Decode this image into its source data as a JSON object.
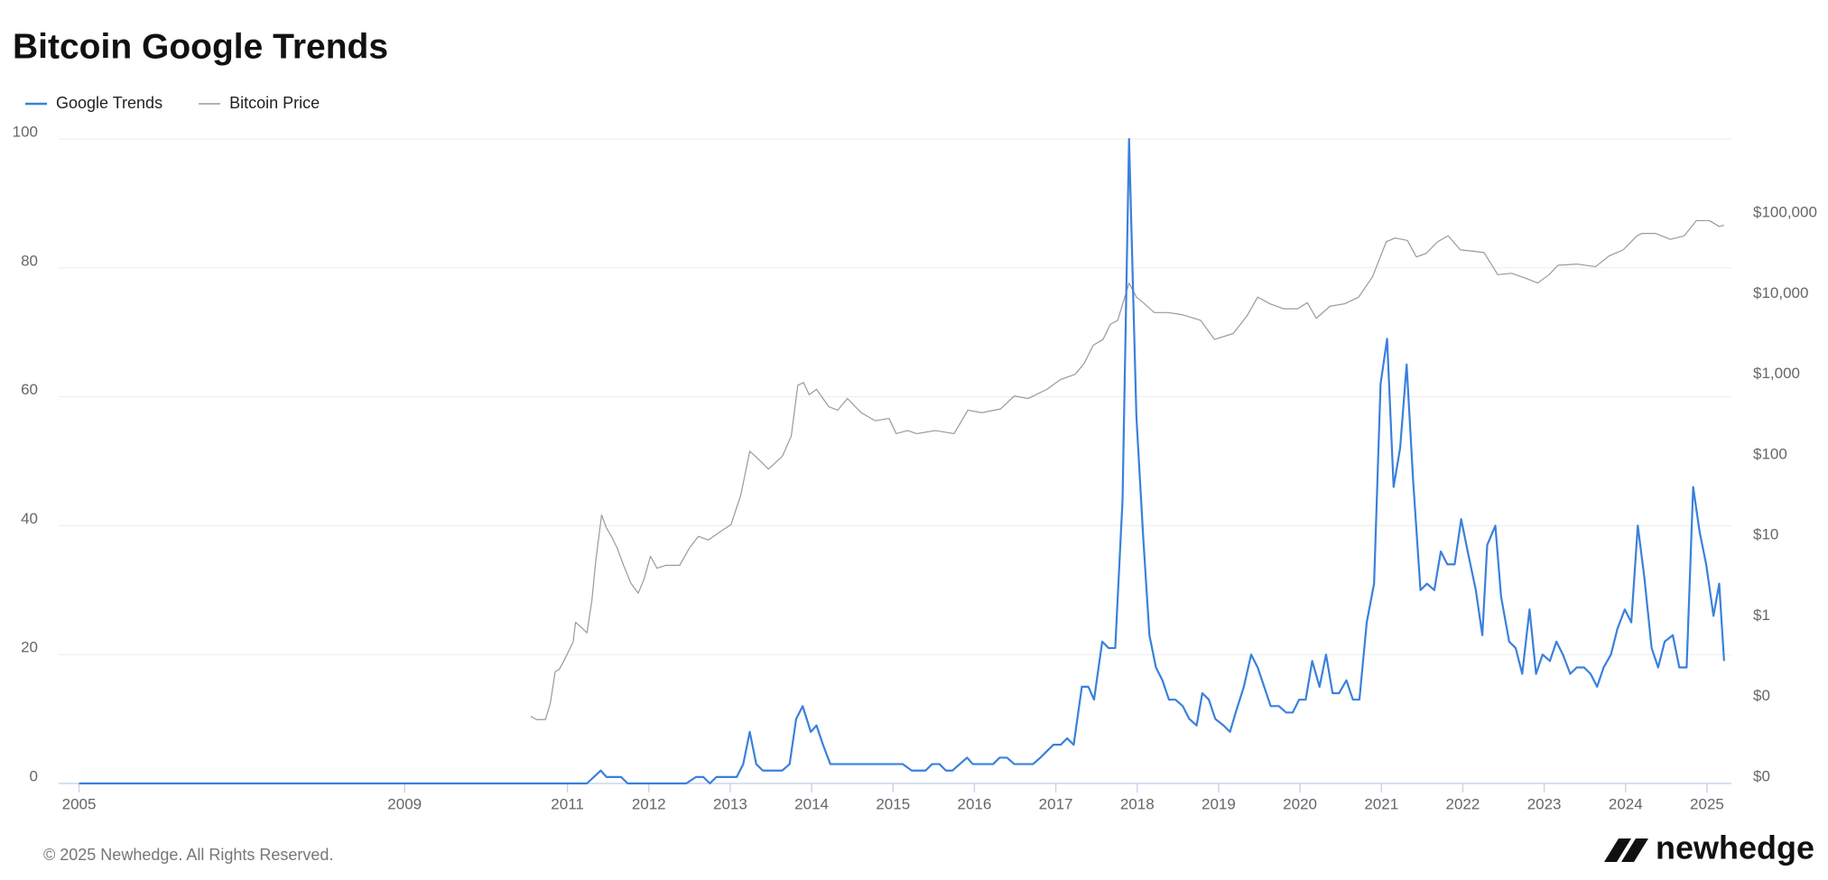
{
  "chart_data": {
    "type": "line",
    "title": "Bitcoin Google Trends",
    "xlim": [
      2004.75,
      2025.3
    ],
    "xticks": [
      2005,
      2009,
      2011,
      2012,
      2013,
      2014,
      2015,
      2016,
      2017,
      2018,
      2019,
      2020,
      2021,
      2022,
      2023,
      2024,
      2025
    ],
    "ylim": [
      0,
      100
    ],
    "yticks": [
      0,
      20,
      40,
      60,
      80,
      100
    ],
    "y2lim": [
      0.01,
      1000000
    ],
    "y2log": true,
    "y2ticks": [
      {
        "value": 0.01,
        "label": "$0"
      },
      {
        "value": 0.1,
        "label": "$0"
      },
      {
        "value": 1,
        "label": "$1"
      },
      {
        "value": 10,
        "label": "$10"
      },
      {
        "value": 100,
        "label": "$100"
      },
      {
        "value": 1000,
        "label": "$1,000"
      },
      {
        "value": 10000,
        "label": "$10,000"
      },
      {
        "value": 100000,
        "label": "$100,000"
      }
    ],
    "grid": true,
    "legend": "top-left",
    "series": [
      {
        "name": "Google Trends",
        "color": "#3a80dc",
        "axis": "y",
        "x": [
          2005.0,
          2011.24,
          2011.41,
          2011.48,
          2011.66,
          2011.74,
          2012.46,
          2012.58,
          2012.67,
          2012.75,
          2012.83,
          2013.08,
          2013.16,
          2013.24,
          2013.32,
          2013.4,
          2013.64,
          2013.73,
          2013.81,
          2013.89,
          2013.99,
          2014.06,
          2014.14,
          2014.23,
          2015.12,
          2015.23,
          2015.4,
          2015.48,
          2015.57,
          2015.65,
          2015.73,
          2015.82,
          2015.91,
          2015.98,
          2016.23,
          2016.31,
          2016.4,
          2016.49,
          2016.72,
          2016.81,
          2016.89,
          2016.97,
          2017.06,
          2017.14,
          2017.22,
          2017.32,
          2017.4,
          2017.47,
          2017.57,
          2017.65,
          2017.73,
          2017.82,
          2017.9,
          2017.99,
          2018.07,
          2018.15,
          2018.23,
          2018.31,
          2018.39,
          2018.47,
          2018.56,
          2018.64,
          2018.73,
          2018.8,
          2018.88,
          2018.96,
          2019.06,
          2019.14,
          2019.21,
          2019.31,
          2019.4,
          2019.48,
          2019.56,
          2019.64,
          2019.74,
          2019.83,
          2019.91,
          2019.99,
          2020.07,
          2020.15,
          2020.24,
          2020.32,
          2020.4,
          2020.48,
          2020.57,
          2020.65,
          2020.73,
          2020.82,
          2020.91,
          2020.99,
          2021.07,
          2021.15,
          2021.23,
          2021.31,
          2021.39,
          2021.48,
          2021.56,
          2021.65,
          2021.73,
          2021.81,
          2021.9,
          2021.98,
          2022.06,
          2022.16,
          2022.24,
          2022.3,
          2022.4,
          2022.47,
          2022.57,
          2022.65,
          2022.73,
          2022.82,
          2022.9,
          2022.98,
          2023.07,
          2023.15,
          2023.23,
          2023.32,
          2023.4,
          2023.49,
          2023.57,
          2023.65,
          2023.73,
          2023.82,
          2023.9,
          2023.99,
          2024.07,
          2024.15,
          2024.23,
          2024.32,
          2024.4,
          2024.48,
          2024.58,
          2024.66,
          2024.75,
          2024.83,
          2024.91,
          2024.99,
          2025.08,
          2025.15,
          2025.21
        ],
        "values": [
          0,
          0,
          2,
          1,
          1,
          0,
          0,
          1,
          1,
          0,
          1,
          1,
          3,
          8,
          3,
          2,
          2,
          3,
          10,
          12,
          8,
          9,
          6,
          3,
          3,
          2,
          2,
          3,
          3,
          2,
          2,
          3,
          4,
          3,
          3,
          4,
          4,
          3,
          3,
          4,
          5,
          6,
          6,
          7,
          6,
          15,
          15,
          13,
          22,
          21,
          21,
          44,
          100,
          57,
          39,
          23,
          18,
          16,
          13,
          13,
          12,
          10,
          9,
          14,
          13,
          10,
          9,
          8,
          11,
          15,
          20,
          18,
          15,
          12,
          12,
          11,
          11,
          13,
          13,
          19,
          15,
          20,
          14,
          14,
          16,
          13,
          13,
          25,
          31,
          62,
          69,
          46,
          52,
          65,
          47,
          30,
          31,
          30,
          36,
          34,
          34,
          41,
          36,
          30,
          23,
          37,
          40,
          29,
          22,
          21,
          17,
          27,
          17,
          20,
          19,
          22,
          20,
          17,
          18,
          18,
          17,
          15,
          18,
          20,
          24,
          27,
          25,
          40,
          32,
          21,
          18,
          22,
          23,
          18,
          18,
          46,
          39,
          34,
          26,
          31,
          19
        ]
      },
      {
        "name": "Bitcoin Price",
        "color": "#9a9a9a",
        "axis": "y2",
        "x": [
          2010.55,
          2010.62,
          2010.73,
          2010.79,
          2010.85,
          2010.9,
          2010.98,
          2011.07,
          2011.1,
          2011.18,
          2011.24,
          2011.3,
          2011.35,
          2011.42,
          2011.48,
          2011.54,
          2011.61,
          2011.69,
          2011.78,
          2011.87,
          2011.94,
          2012.02,
          2012.1,
          2012.21,
          2012.38,
          2012.5,
          2012.61,
          2012.73,
          2012.9,
          2013.01,
          2013.13,
          2013.24,
          2013.33,
          2013.47,
          2013.64,
          2013.75,
          2013.83,
          2013.9,
          2013.97,
          2014.06,
          2014.21,
          2014.32,
          2014.44,
          2014.61,
          2014.78,
          2014.95,
          2015.04,
          2015.18,
          2015.29,
          2015.52,
          2015.75,
          2015.92,
          2016.09,
          2016.32,
          2016.49,
          2016.66,
          2016.89,
          2017.06,
          2017.24,
          2017.35,
          2017.46,
          2017.58,
          2017.67,
          2017.76,
          2017.9,
          2017.99,
          2018.09,
          2018.21,
          2018.38,
          2018.55,
          2018.78,
          2018.95,
          2019.18,
          2019.35,
          2019.48,
          2019.63,
          2019.8,
          2019.97,
          2020.09,
          2020.2,
          2020.37,
          2020.55,
          2020.72,
          2020.89,
          2021.06,
          2021.17,
          2021.32,
          2021.43,
          2021.55,
          2021.69,
          2021.82,
          2021.97,
          2022.12,
          2022.26,
          2022.43,
          2022.6,
          2022.77,
          2022.92,
          2023.06,
          2023.17,
          2023.4,
          2023.63,
          2023.8,
          2023.97,
          2024.14,
          2024.2,
          2024.37,
          2024.55,
          2024.72,
          2024.87,
          2025.03,
          2025.15,
          2025.21
        ],
        "values": [
          0.068,
          0.062,
          0.062,
          0.099,
          0.245,
          0.26,
          0.37,
          0.57,
          1.0,
          0.85,
          0.74,
          1.85,
          6.0,
          21.5,
          14.8,
          11.7,
          8.4,
          5.1,
          3.05,
          2.3,
          3.4,
          6.6,
          4.7,
          5.1,
          5.1,
          8.4,
          11.7,
          10.5,
          13.8,
          16.4,
          38,
          133,
          110,
          80,
          115,
          205,
          875,
          950,
          670,
          780,
          476,
          430,
          600,
          400,
          318,
          340,
          220,
          240,
          220,
          240,
          220,
          430,
          400,
          445,
          645,
          600,
          780,
          1035,
          1200,
          1650,
          2750,
          3250,
          5000,
          5600,
          16300,
          10900,
          9000,
          7000,
          7000,
          6600,
          5600,
          3250,
          3850,
          6400,
          10900,
          9000,
          7800,
          7800,
          9300,
          5950,
          8400,
          9000,
          10900,
          19400,
          53000,
          59000,
          55000,
          34300,
          38000,
          53000,
          62800,
          42000,
          40500,
          39000,
          20700,
          21500,
          18700,
          16300,
          20700,
          27100,
          28000,
          26000,
          35500,
          42000,
          62800,
          67200,
          67200,
          56800,
          62800,
          97000,
          97000,
          82000,
          85000
        ]
      }
    ]
  },
  "footer": "© 2025 Newhedge. All Rights Reserved.",
  "logo": "newhedge"
}
